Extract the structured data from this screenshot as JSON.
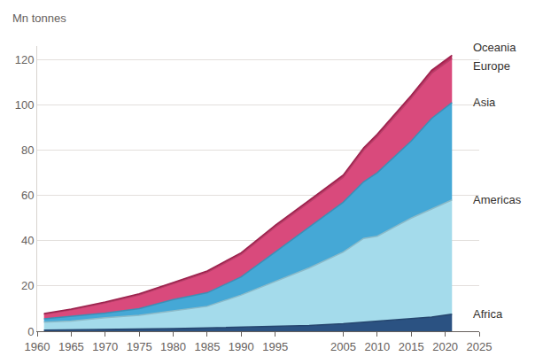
{
  "chart_data": {
    "type": "area",
    "stacked": true,
    "y_label": "Mn tonnes",
    "x": [
      1961,
      1965,
      1970,
      1975,
      1980,
      1985,
      1990,
      1995,
      2000,
      2005,
      2008,
      2010,
      2015,
      2018,
      2021
    ],
    "series": [
      {
        "name": "Africa",
        "color": "#2b5282",
        "values": [
          0.5,
          0.6,
          0.8,
          1.0,
          1.2,
          1.5,
          1.8,
          2.2,
          2.5,
          3.3,
          4.0,
          4.5,
          5.5,
          6.3,
          7.5
        ]
      },
      {
        "name": "Americas",
        "color": "#a4dbeb",
        "values": [
          3.5,
          3.9,
          5.2,
          6.0,
          7.8,
          9.5,
          14.2,
          19.8,
          25.5,
          31.7,
          37.0,
          37.5,
          44.5,
          47.7,
          50.5
        ]
      },
      {
        "name": "Asia",
        "color": "#45a8d6",
        "values": [
          1.5,
          2.0,
          2.0,
          3.0,
          5.0,
          6.0,
          8.0,
          13.0,
          18.0,
          22.0,
          25.0,
          28.0,
          34.0,
          40.0,
          43.0
        ]
      },
      {
        "name": "Europe",
        "color": "#d94a7c",
        "values": [
          2.0,
          3.0,
          4.5,
          6.0,
          7.0,
          9.0,
          10.0,
          11.0,
          11.0,
          11.0,
          14.0,
          16.0,
          19.0,
          20.0,
          19.5
        ]
      },
      {
        "name": "Oceania",
        "color": "#b8285a",
        "values": [
          0.3,
          0.3,
          0.4,
          0.5,
          0.5,
          0.6,
          0.7,
          0.8,
          0.9,
          1.0,
          1.0,
          1.1,
          1.2,
          1.3,
          1.4
        ]
      }
    ],
    "xlim": [
      1960,
      2025
    ],
    "xticks": [
      1960,
      1965,
      1970,
      1975,
      1980,
      1985,
      1990,
      1995,
      2005,
      2010,
      2015,
      2020,
      2025
    ],
    "ylim": [
      0,
      126
    ],
    "yticks": [
      0,
      20,
      40,
      60,
      80,
      100,
      120
    ],
    "grid": true
  }
}
